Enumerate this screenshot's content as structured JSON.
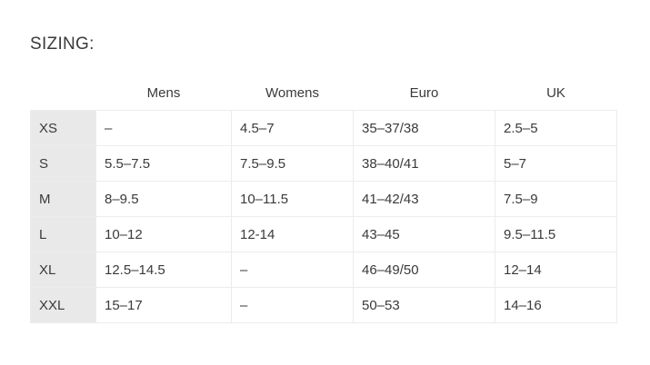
{
  "title": "SIZING:",
  "columns": [
    "",
    "Mens",
    "Womens",
    "Euro",
    "UK"
  ],
  "rows": [
    {
      "size": "XS",
      "mens": "–",
      "womens": "4.5–7",
      "euro": "35–37/38",
      "uk": "2.5–5"
    },
    {
      "size": "S",
      "mens": "5.5–7.5",
      "womens": "7.5–9.5",
      "euro": "38–40/41",
      "uk": "5–7"
    },
    {
      "size": "M",
      "mens": "8–9.5",
      "womens": "10–11.5",
      "euro": "41–42/43",
      "uk": "7.5–9"
    },
    {
      "size": "L",
      "mens": "10–12",
      "womens": "12-14",
      "euro": "43–45",
      "uk": "9.5–11.5"
    },
    {
      "size": "XL",
      "mens": "12.5–14.5",
      "womens": "–",
      "euro": "46–49/50",
      "uk": "12–14"
    },
    {
      "size": "XXL",
      "mens": "15–17",
      "womens": "–",
      "euro": "50–53",
      "uk": "14–16"
    }
  ]
}
